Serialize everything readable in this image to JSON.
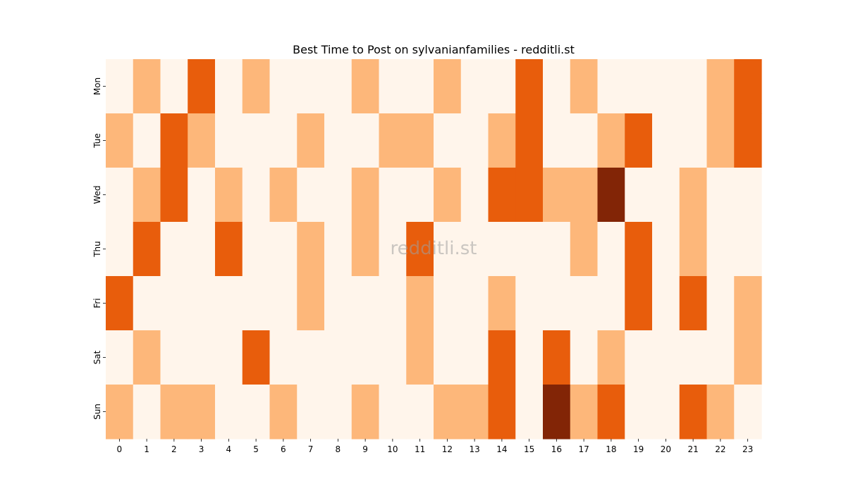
{
  "chart_data": {
    "type": "heatmap",
    "title": "Best Time to Post on sylvanianfamilies - redditli.st",
    "xlabel": "",
    "ylabel": "",
    "watermark": "redditli.st",
    "x_labels": [
      "0",
      "1",
      "2",
      "3",
      "4",
      "5",
      "6",
      "7",
      "8",
      "9",
      "10",
      "11",
      "12",
      "13",
      "14",
      "15",
      "16",
      "17",
      "18",
      "19",
      "20",
      "21",
      "22",
      "23"
    ],
    "y_labels": [
      "Mon",
      "Tue",
      "Wed",
      "Thu",
      "Fri",
      "Sat",
      "Sun"
    ],
    "values": [
      [
        0,
        1,
        0,
        2,
        0,
        1,
        0,
        0,
        0,
        1,
        0,
        0,
        1,
        0,
        0,
        2,
        0,
        1,
        0,
        0,
        0,
        0,
        1,
        2
      ],
      [
        1,
        0,
        2,
        1,
        0,
        0,
        0,
        1,
        0,
        0,
        1,
        1,
        0,
        0,
        1,
        2,
        0,
        0,
        1,
        2,
        0,
        0,
        1,
        2
      ],
      [
        0,
        1,
        2,
        0,
        1,
        0,
        1,
        0,
        0,
        1,
        0,
        0,
        1,
        0,
        2,
        2,
        1,
        1,
        3,
        0,
        0,
        1,
        0,
        0
      ],
      [
        0,
        2,
        0,
        0,
        2,
        0,
        0,
        1,
        0,
        1,
        0,
        2,
        0,
        0,
        0,
        0,
        0,
        1,
        0,
        2,
        0,
        1,
        0,
        0
      ],
      [
        2,
        0,
        0,
        0,
        0,
        0,
        0,
        1,
        0,
        0,
        0,
        1,
        0,
        0,
        1,
        0,
        0,
        0,
        0,
        2,
        0,
        2,
        0,
        1
      ],
      [
        0,
        1,
        0,
        0,
        0,
        2,
        0,
        0,
        0,
        0,
        0,
        1,
        0,
        0,
        2,
        0,
        2,
        0,
        1,
        0,
        0,
        0,
        0,
        1
      ],
      [
        1,
        0,
        1,
        1,
        0,
        0,
        1,
        0,
        0,
        1,
        0,
        0,
        1,
        1,
        2,
        0,
        3,
        1,
        2,
        0,
        0,
        2,
        1,
        0
      ]
    ],
    "color_levels": [
      "#fff5eb",
      "#fdb77a",
      "#e85d0c",
      "#822506"
    ],
    "colormap": "Oranges",
    "grid": false,
    "legend": "none"
  }
}
